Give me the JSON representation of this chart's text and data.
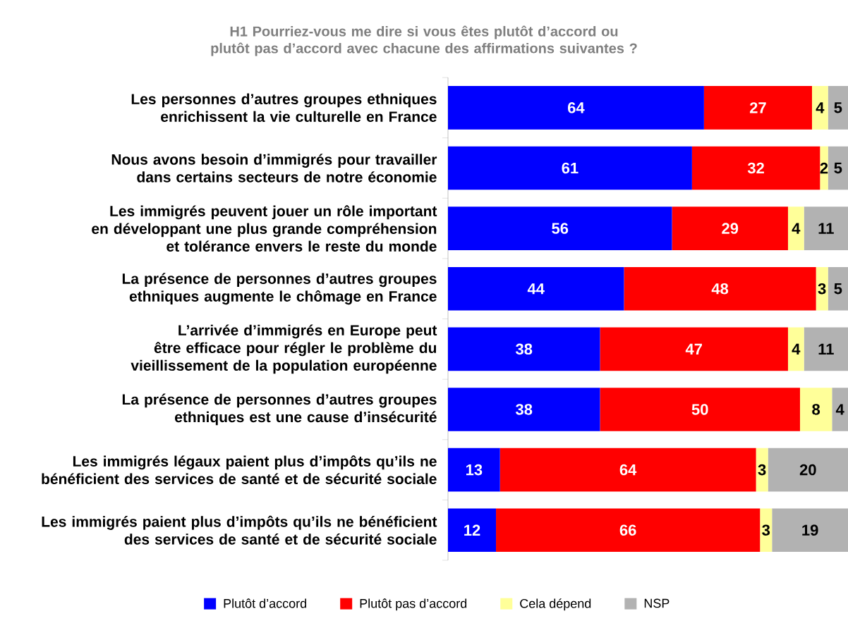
{
  "chart_data": {
    "type": "bar",
    "orientation": "horizontal",
    "stacked": true,
    "title": "H1 Pourriez-vous me dire si vous êtes plutôt d’accord ou plutôt pas d’accord avec chacune des affirmations suivantes ?",
    "categories": [
      "Les personnes d’autres groupes ethniques enrichissent la vie culturelle en France",
      "Nous avons besoin d’immigrés pour travailler dans certains secteurs de notre économie",
      "Les immigrés peuvent jouer un rôle important en développant une plus grande compréhension et tolérance envers le reste du monde",
      "La présence de personnes d’autres groupes ethniques augmente le chômage en France",
      "L’arrivée d’immigrés en Europe peut être efficace pour régler le problème du vieillissement de la population européenne",
      "La présence de personnes d’autres groupes ethniques  est une cause d’insécurité",
      "Les immigrés légaux paient plus d’impôts qu’ils ne bénéficient des services de santé et de sécurité sociale",
      "Les immigrés paient plus d’impôts qu’ils ne bénéficient des services de santé et de sécurité sociale"
    ],
    "series": [
      {
        "name": "Plutôt d’accord",
        "color": "#0000ff",
        "values": [
          64,
          61,
          56,
          44,
          38,
          38,
          13,
          12
        ]
      },
      {
        "name": "Plutôt pas d’accord",
        "color": "#ff0000",
        "values": [
          27,
          32,
          29,
          48,
          47,
          50,
          64,
          66
        ]
      },
      {
        "name": "Cela dépend",
        "color": "#ffff99",
        "values": [
          4,
          2,
          4,
          3,
          4,
          8,
          3,
          3
        ]
      },
      {
        "name": "NSP",
        "color": "#b2b2b2",
        "values": [
          5,
          5,
          11,
          5,
          11,
          4,
          20,
          19
        ]
      }
    ],
    "xlim": [
      0,
      100
    ],
    "data_labels": true,
    "legend": "bottom",
    "tick_labels": "y"
  }
}
